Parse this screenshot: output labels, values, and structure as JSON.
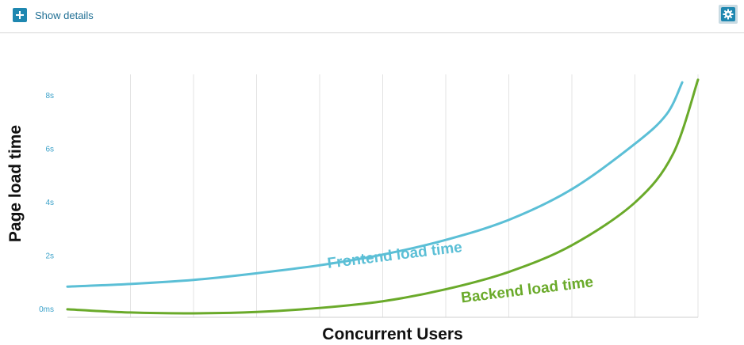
{
  "toolbar": {
    "details_label": "Show details",
    "details_icon": "plus-icon",
    "settings_icon": "gear-icon",
    "accent_color": "#1e87b0"
  },
  "chart_data": {
    "type": "line",
    "title": "",
    "xlabel": "Concurrent Users",
    "ylabel": "Page load time",
    "ylim": [
      -0.3,
      8.8
    ],
    "xlim": [
      0,
      10
    ],
    "y_ticks": [
      {
        "value": 0,
        "label": "0ms"
      },
      {
        "value": 2,
        "label": "2s"
      },
      {
        "value": 4,
        "label": "4s"
      },
      {
        "value": 6,
        "label": "6s"
      },
      {
        "value": 8,
        "label": "8s"
      }
    ],
    "x_gridlines": [
      1,
      2,
      3,
      4,
      5,
      6,
      7,
      8,
      9,
      10
    ],
    "grid": true,
    "series": [
      {
        "name": "Frontend load time",
        "color": "#5bbfd6",
        "points": [
          {
            "x": 0,
            "y": 0.85
          },
          {
            "x": 1,
            "y": 0.95
          },
          {
            "x": 2,
            "y": 1.1
          },
          {
            "x": 3,
            "y": 1.35
          },
          {
            "x": 4,
            "y": 1.65
          },
          {
            "x": 5,
            "y": 2.05
          },
          {
            "x": 6,
            "y": 2.6
          },
          {
            "x": 7,
            "y": 3.35
          },
          {
            "x": 8,
            "y": 4.5
          },
          {
            "x": 9,
            "y": 6.2
          },
          {
            "x": 9.5,
            "y": 7.3
          },
          {
            "x": 9.75,
            "y": 8.5
          }
        ]
      },
      {
        "name": "Backend load time",
        "color": "#6aaa2a",
        "points": [
          {
            "x": 0,
            "y": 0.0
          },
          {
            "x": 1,
            "y": -0.12
          },
          {
            "x": 2,
            "y": -0.15
          },
          {
            "x": 3,
            "y": -0.1
          },
          {
            "x": 4,
            "y": 0.05
          },
          {
            "x": 5,
            "y": 0.3
          },
          {
            "x": 6,
            "y": 0.75
          },
          {
            "x": 7,
            "y": 1.4
          },
          {
            "x": 8,
            "y": 2.4
          },
          {
            "x": 9,
            "y": 4.0
          },
          {
            "x": 9.6,
            "y": 5.8
          },
          {
            "x": 10,
            "y": 8.6
          }
        ]
      }
    ],
    "annotations": [
      {
        "text": "Frontend load time",
        "series": 0,
        "x": 5.2,
        "y": 1.85
      },
      {
        "text": "Backend load time",
        "series": 1,
        "x": 7.3,
        "y": 0.55
      }
    ]
  }
}
